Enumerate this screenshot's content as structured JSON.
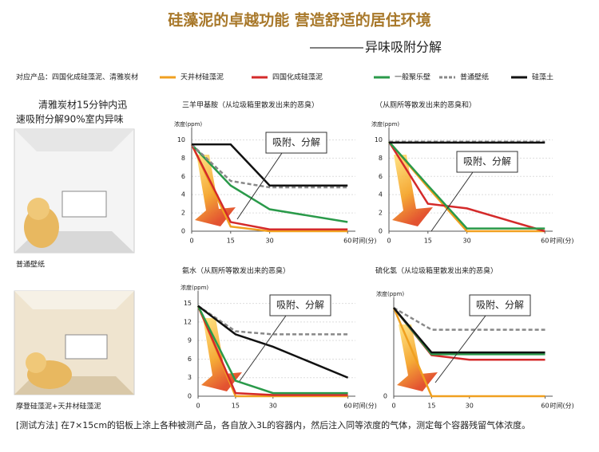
{
  "header": {
    "title": "硅藻泥的卓越功能 营造舒适的居住环境",
    "subtitle": "异味吸附分解",
    "products": "对应产品：四国化成硅藻泥、清雅炭材"
  },
  "side": {
    "claim": [
      "清雅炭材15分钟内迅",
      "速吸附分解90%室内异味"
    ],
    "room1": "普通壁纸",
    "room2": "摩登硅藻泥+天井材硅藻泥"
  },
  "chart_data": [
    {
      "type": "line",
      "title": "三羊甲基胺（从垃圾箱里散发出来的恶臭）",
      "annotation": "吸附、分解",
      "ylabel": "浓度(ppm)",
      "xlabel": "时间(分)",
      "x": [
        0,
        15,
        30,
        60
      ],
      "xlim": [
        0,
        63
      ],
      "xticks": [
        0,
        15,
        30,
        60
      ],
      "ylim": [
        0,
        11
      ],
      "yticks": [
        0,
        2,
        4,
        6,
        8,
        10
      ],
      "grid": true,
      "series": [
        {
          "name": "天井材硅藻泥",
          "color": "#f0a020",
          "values": [
            9.5,
            0.5,
            0,
            0
          ]
        },
        {
          "name": "四国化成硅藻泥",
          "color": "#d42a2a",
          "values": [
            9.5,
            1,
            0.2,
            0.2
          ]
        },
        {
          "name": "一般聚乐壁",
          "color": "#2a9a4a",
          "values": [
            9.5,
            5,
            2.4,
            1
          ]
        },
        {
          "name": "普通壁纸",
          "color": "#888888",
          "dashed": true,
          "values": [
            9.5,
            5.5,
            4.8,
            4.8
          ]
        },
        {
          "name": "硅藻土",
          "color": "#111111",
          "values": [
            9.5,
            9.5,
            5,
            5
          ]
        }
      ]
    },
    {
      "type": "line",
      "title": "（从厕所等散发出来的恶臭和）",
      "annotation": "吸附、分解",
      "ylabel": "浓度(ppm)",
      "xlabel": "时间(分)",
      "x": [
        0,
        15,
        30,
        60
      ],
      "xlim": [
        0,
        63
      ],
      "xticks": [
        0,
        15,
        30,
        60
      ],
      "ylim": [
        0,
        11
      ],
      "yticks": [
        0,
        2,
        4,
        6,
        8,
        10
      ],
      "grid": true,
      "series": [
        {
          "values": [
            9.8,
            4.8,
            0,
            0
          ]
        },
        {
          "values": [
            9.8,
            3,
            2.5,
            0
          ]
        },
        {
          "values": [
            9.8,
            5,
            0.3,
            0.3
          ]
        },
        {
          "values": [
            9.8,
            9.8,
            9.8,
            9.8
          ]
        },
        {
          "values": [
            9.7,
            9.7,
            9.7,
            9.7
          ]
        }
      ]
    },
    {
      "type": "line",
      "title": "氨水（从厕所等散发出来的恶臭）",
      "annotation": "吸附、分解",
      "ylabel": "浓度(ppm)",
      "xlabel": "时间(分)",
      "x": [
        0,
        15,
        30,
        60
      ],
      "xlim": [
        0,
        63
      ],
      "xticks": [
        0,
        15,
        30,
        60
      ],
      "ylim": [
        0,
        16.5
      ],
      "yticks": [
        0,
        3,
        6,
        9,
        12,
        15
      ],
      "grid": true,
      "series": [
        {
          "values": [
            14.6,
            0,
            0,
            0
          ]
        },
        {
          "values": [
            14.6,
            0.5,
            0.2,
            0.2
          ]
        },
        {
          "values": [
            14.6,
            2.5,
            0.5,
            0.5
          ]
        },
        {
          "values": [
            14.6,
            10.5,
            10,
            10
          ]
        },
        {
          "values": [
            14.6,
            10,
            8,
            3
          ]
        }
      ]
    },
    {
      "type": "line",
      "title": "硫化氢（从垃圾箱里散发出来的恶臭）",
      "annotation": "吸附、分解",
      "ylabel": "浓度(ppm)",
      "xlabel": "时间(分)",
      "x": [
        0,
        15,
        30,
        60
      ],
      "xlim": [
        0,
        63
      ],
      "xticks": [
        0,
        15,
        30,
        60
      ],
      "ylim": [
        0,
        10.5
      ],
      "yticks": [
        0
      ],
      "grid": true,
      "series": [
        {
          "values": [
            9.7,
            0,
            0,
            0
          ]
        },
        {
          "values": [
            9.7,
            4.5,
            4,
            4
          ]
        },
        {
          "values": [
            9.7,
            4.6,
            4.6,
            4.6
          ]
        },
        {
          "values": [
            9.7,
            7.3,
            7.3,
            7.3
          ]
        },
        {
          "values": [
            9.7,
            4.8,
            4.8,
            4.8
          ]
        }
      ]
    }
  ],
  "footer": "[测试方法] 在7×15cm的铝板上涂上各种被测产品，各自放入3L的容器内，然后注入同等浓度的气体，测定每个容器残留气体浓度。"
}
